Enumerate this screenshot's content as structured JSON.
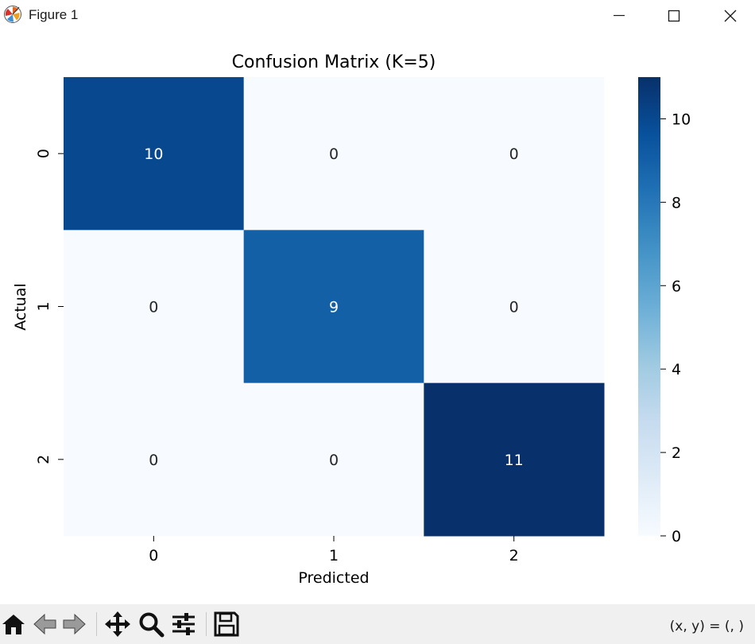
{
  "window": {
    "title": "Figure 1",
    "icon": "matplotlib-logo-icon",
    "controls": [
      "minimize-icon",
      "maximize-icon",
      "close-icon"
    ]
  },
  "toolbar": {
    "tools": [
      "home-icon",
      "back-arrow-icon",
      "forward-arrow-icon",
      "pan-move-icon",
      "zoom-magnifier-icon",
      "configure-subplots-icon",
      "save-floppy-icon"
    ],
    "coords_text": "(x, y) = (, )"
  },
  "chart_data": {
    "type": "heatmap",
    "title": "Confusion Matrix (K=5)",
    "xlabel": "Predicted",
    "ylabel": "Actual",
    "x_categories": [
      "0",
      "1",
      "2"
    ],
    "y_categories": [
      "0",
      "1",
      "2"
    ],
    "values": [
      [
        10,
        0,
        0
      ],
      [
        0,
        9,
        0
      ],
      [
        0,
        0,
        11
      ]
    ],
    "colormap": "Blues",
    "colorbar": {
      "min": 0,
      "max": 11,
      "ticks": [
        0,
        2,
        4,
        6,
        8,
        10
      ]
    },
    "annotated": true,
    "grid": false
  }
}
